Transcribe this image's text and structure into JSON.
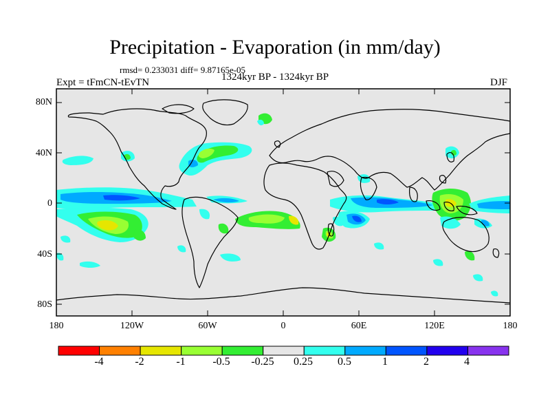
{
  "title": "Precipitation - Evaporation (in mm/day)",
  "stats": "rmsd= 0.233031 diff= 9.87165e-05",
  "experiment": "Expt = tFmCN-tEvTN",
  "period": "1324kyr BP - 1324kyr BP",
  "season": "DJF",
  "lat_labels": [
    "80N",
    "40N",
    "0",
    "40S",
    "80S"
  ],
  "lon_labels": [
    "180",
    "120W",
    "60W",
    "0",
    "60E",
    "120E",
    "180"
  ],
  "colorbar": {
    "colors": [
      "#ff0000",
      "#ff8000",
      "#e6e600",
      "#99ff33",
      "#33ee33",
      "#e6e6e6",
      "#33ffee",
      "#00aaff",
      "#0055ff",
      "#2200ee",
      "#8833ee"
    ],
    "labels": [
      "-4",
      "-2",
      "-1",
      "-0.5",
      "-0.25",
      "0.25",
      "0.5",
      "1",
      "2",
      "4"
    ]
  },
  "map": {
    "ocean_color": "#e6e6e6",
    "coast_color": "#000000"
  }
}
